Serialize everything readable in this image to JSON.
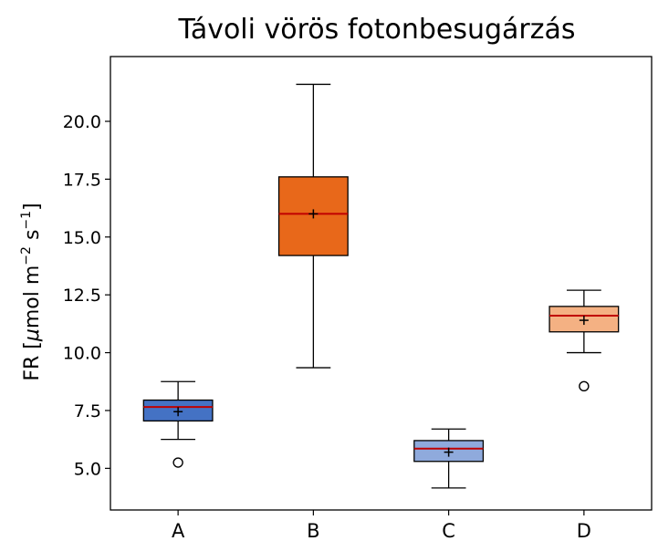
{
  "chart_data": {
    "type": "box",
    "title": "Távoli vörös fotonbesugárzás",
    "xlabel": "",
    "ylabel": {
      "text": "FR [",
      "mu": "μ",
      "unit_mol": "mol m",
      "exp_m": "−2",
      "unit_s": " s",
      "exp_s": "−1",
      "close": "]"
    },
    "ylim": [
      3.2,
      22.8
    ],
    "yticks": [
      5.0,
      7.5,
      10.0,
      12.5,
      15.0,
      17.5,
      20.0
    ],
    "ytick_labels": [
      "5.0",
      "7.5",
      "10.0",
      "12.5",
      "15.0",
      "17.5",
      "20.0"
    ],
    "grid": false,
    "categories": [
      "A",
      "B",
      "C",
      "D"
    ],
    "boxes": [
      {
        "category": "A",
        "whisker_low": 6.25,
        "q1": 7.05,
        "median": 7.65,
        "q3": 7.95,
        "whisker_high": 8.75,
        "mean": 7.45,
        "outliers": [
          5.25
        ],
        "color": "#4472c4"
      },
      {
        "category": "B",
        "whisker_low": 9.35,
        "q1": 14.2,
        "median": 16.0,
        "q3": 17.6,
        "whisker_high": 21.6,
        "mean": 16.0,
        "outliers": [],
        "color": "#e8681a"
      },
      {
        "category": "C",
        "whisker_low": 4.15,
        "q1": 5.3,
        "median": 5.85,
        "q3": 6.2,
        "whisker_high": 6.7,
        "mean": 5.7,
        "outliers": [],
        "color": "#8faadc"
      },
      {
        "category": "D",
        "whisker_low": 10.0,
        "q1": 10.9,
        "median": 11.6,
        "q3": 12.0,
        "whisker_high": 12.7,
        "mean": 11.4,
        "outliers": [
          8.55
        ],
        "color": "#f4b183"
      }
    ],
    "median_color": "#c00000",
    "mean_marker": "+"
  }
}
